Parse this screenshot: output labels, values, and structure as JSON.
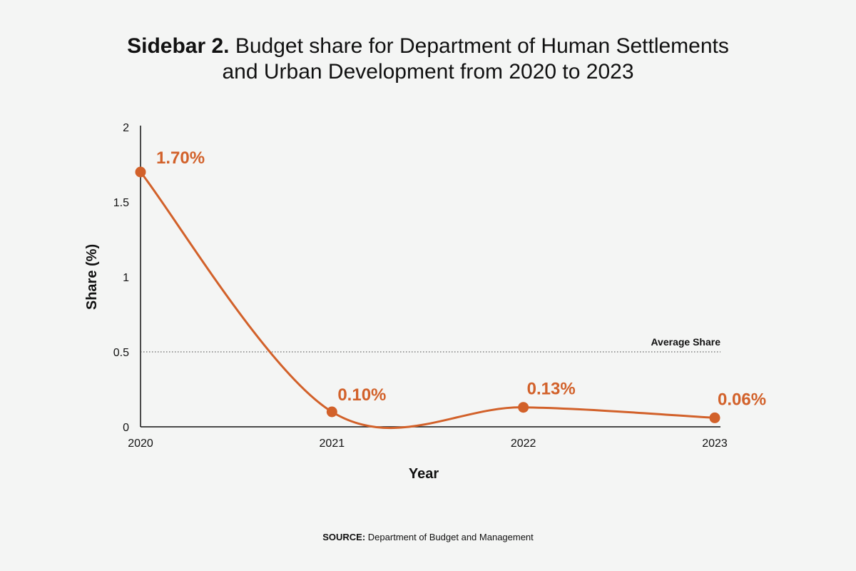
{
  "title": {
    "prefix": "Sidebar 2.",
    "line1": "Budget share for Department of Human Settlements",
    "line2": "and Urban Development from 2020 to 2023"
  },
  "source": {
    "label": "SOURCE:",
    "text": "Department of Budget and Management"
  },
  "chart_data": {
    "type": "line",
    "x": [
      "2020",
      "2021",
      "2022",
      "2023"
    ],
    "series": [
      {
        "name": "Budget share",
        "values": [
          1.7,
          0.1,
          0.13,
          0.06
        ],
        "labels": [
          "1.70%",
          "0.10%",
          "0.13%",
          "0.06%"
        ]
      }
    ],
    "xlabel": "Year",
    "ylabel": "Share (%)",
    "ylim": [
      0,
      2
    ],
    "yticks": [
      0,
      0.5,
      1,
      1.5,
      2
    ],
    "ytick_labels": [
      "0",
      "0.5",
      "1",
      "1.5",
      "2"
    ],
    "reference_line": {
      "value": 0.5,
      "label": "Average Share",
      "style": "dotted"
    },
    "grid": false,
    "smooth": true
  },
  "colors": {
    "series": "#d2612a",
    "axis": "#111111",
    "background": "#f4f5f4"
  }
}
